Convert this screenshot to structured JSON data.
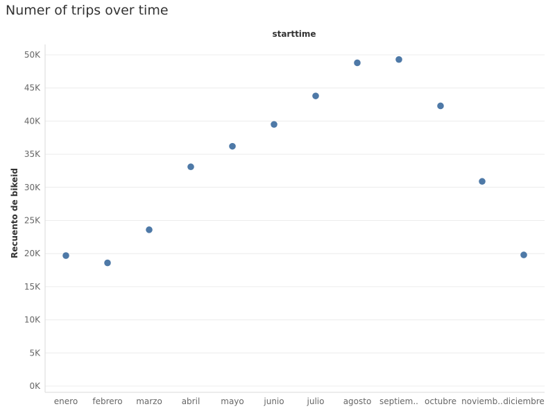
{
  "chart_data": {
    "type": "scatter",
    "title": "Numer of trips over time",
    "column_header": "starttime",
    "ylabel": "Recuento de bikeid",
    "categories": [
      "enero",
      "febrero",
      "marzo",
      "abril",
      "mayo",
      "junio",
      "julio",
      "agosto",
      "septiem..",
      "octubre",
      "noviemb..",
      "diciembre"
    ],
    "values": [
      19700,
      18600,
      23600,
      33100,
      36200,
      39500,
      43800,
      48800,
      49300,
      42300,
      30900,
      19800
    ],
    "yticks": [
      "0K",
      "5K",
      "10K",
      "15K",
      "20K",
      "25K",
      "30K",
      "35K",
      "40K",
      "45K",
      "50K"
    ],
    "ylim": [
      0,
      51000
    ],
    "grid": true,
    "color": "#4e79a7"
  }
}
